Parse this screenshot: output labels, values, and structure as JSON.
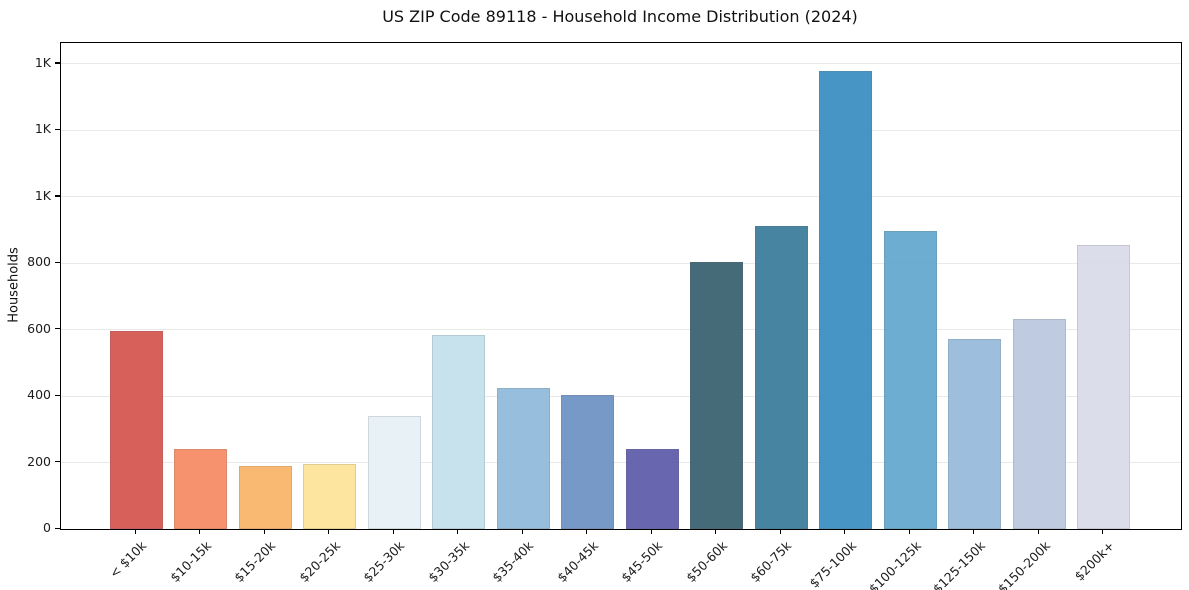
{
  "chart_data": {
    "type": "bar",
    "title": "US ZIP Code 89118 - Household Income Distribution (2024)",
    "xlabel": "",
    "ylabel": "Households",
    "categories": [
      "< $10k",
      "$10-15k",
      "$15-20k",
      "$20-25k",
      "$25-30k",
      "$30-35k",
      "$35-40k",
      "$40-45k",
      "$45-50k",
      "$50-60k",
      "$60-75k",
      "$75-100k",
      "$100-125k",
      "$125-150k",
      "$150-200k",
      "$200k+"
    ],
    "values": [
      596,
      240,
      189,
      196,
      340,
      584,
      426,
      402,
      240,
      804,
      913,
      1380,
      898,
      572,
      632,
      855
    ],
    "bar_colors": [
      "#d6544e",
      "#f68a62",
      "#fab469",
      "#fde398",
      "#e6f1f6",
      "#c4e0ec",
      "#90bada",
      "#6d92c4",
      "#5c5baa",
      "#38606f",
      "#3a7b9c",
      "#3a8ec0",
      "#62a7ce",
      "#97badb",
      "#bac8de",
      "#d9dbe9"
    ],
    "ylim": [
      0,
      1463
    ],
    "yticks": [
      {
        "value": 0,
        "label": "0"
      },
      {
        "value": 200,
        "label": "200"
      },
      {
        "value": 400,
        "label": "400"
      },
      {
        "value": 600,
        "label": "600"
      },
      {
        "value": 800,
        "label": "800"
      },
      {
        "value": 1000,
        "label": "1K"
      },
      {
        "value": 1200,
        "label": "1K"
      },
      {
        "value": 1400,
        "label": "1K"
      }
    ],
    "grid": "horizontal",
    "legend": "none",
    "colors": {
      "background": "#ffffff",
      "gridline": "#e9e9e9",
      "spine": "#000000",
      "text": "#1c1c1c"
    }
  }
}
